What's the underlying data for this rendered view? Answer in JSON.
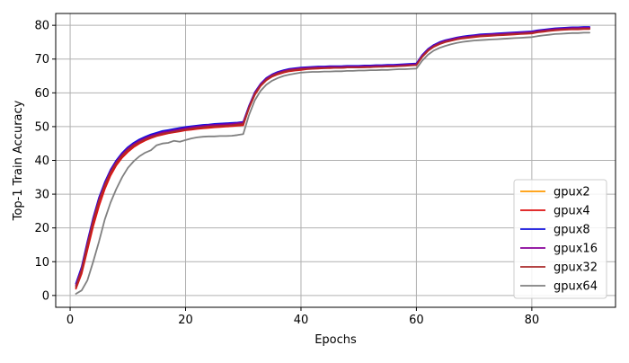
{
  "chart_data": {
    "type": "line",
    "title": "",
    "xlabel": "Epochs",
    "ylabel": "Top-1 Train Accuracy",
    "xlim": [
      -2.5,
      94.5
    ],
    "ylim": [
      -3.5,
      83.5
    ],
    "x_ticks": [
      0,
      20,
      40,
      60,
      80
    ],
    "y_ticks": [
      0,
      10,
      20,
      30,
      40,
      50,
      60,
      70,
      80
    ],
    "grid": true,
    "legend_position": "lower-right",
    "series": [
      {
        "name": "gpux2",
        "color": "#ff9900",
        "x": [
          1,
          2,
          3,
          4,
          5,
          6,
          7,
          8,
          9,
          10,
          11,
          12,
          13,
          14,
          15,
          16,
          17,
          18,
          19,
          20,
          21,
          22,
          23,
          24,
          25,
          26,
          27,
          28,
          29,
          30,
          31,
          32,
          33,
          34,
          35,
          36,
          37,
          38,
          39,
          40,
          41,
          42,
          43,
          44,
          45,
          46,
          47,
          48,
          49,
          50,
          51,
          52,
          53,
          54,
          55,
          56,
          57,
          58,
          59,
          60,
          61,
          62,
          63,
          64,
          65,
          66,
          67,
          68,
          69,
          70,
          71,
          72,
          73,
          74,
          75,
          76,
          77,
          78,
          79,
          80,
          81,
          82,
          83,
          84,
          85,
          86,
          87,
          88,
          89,
          90
        ],
        "y": [
          2.5,
          7.5,
          15,
          22.5,
          28.5,
          33,
          36.8,
          39.6,
          41.8,
          43.5,
          44.8,
          45.8,
          46.6,
          47.3,
          47.8,
          48.3,
          48.6,
          48.9,
          49.2,
          49.5,
          49.8,
          50,
          50.2,
          50.4,
          50.5,
          50.6,
          50.7,
          50.8,
          51,
          51.2,
          56,
          60,
          62.5,
          64.2,
          65.3,
          66,
          66.5,
          66.9,
          67.1,
          67.3,
          67.4,
          67.5,
          67.6,
          67.6,
          67.7,
          67.7,
          67.7,
          67.8,
          67.8,
          67.8,
          67.9,
          67.9,
          68,
          68,
          68.1,
          68.1,
          68.2,
          68.3,
          68.4,
          68.5,
          71,
          72.8,
          74,
          74.8,
          75.4,
          75.8,
          76.2,
          76.5,
          76.7,
          76.9,
          77.1,
          77.2,
          77.3,
          77.4,
          77.5,
          77.6,
          77.7,
          77.8,
          77.9,
          78,
          78.3,
          78.5,
          78.7,
          78.9,
          79,
          79.1,
          79.2,
          79.2,
          79.3,
          79.3
        ]
      },
      {
        "name": "gpux4",
        "color": "#dd1111",
        "x": [
          1,
          2,
          3,
          4,
          5,
          6,
          7,
          8,
          9,
          10,
          11,
          12,
          13,
          14,
          15,
          16,
          17,
          18,
          19,
          20,
          21,
          22,
          23,
          24,
          25,
          26,
          27,
          28,
          29,
          30,
          31,
          32,
          33,
          34,
          35,
          36,
          37,
          38,
          39,
          40,
          41,
          42,
          43,
          44,
          45,
          46,
          47,
          48,
          49,
          50,
          51,
          52,
          53,
          54,
          55,
          56,
          57,
          58,
          59,
          60,
          61,
          62,
          63,
          64,
          65,
          66,
          67,
          68,
          69,
          70,
          71,
          72,
          73,
          74,
          75,
          76,
          77,
          78,
          79,
          80,
          81,
          82,
          83,
          84,
          85,
          86,
          87,
          88,
          89,
          90
        ],
        "y": [
          2,
          6.5,
          13.5,
          20.5,
          26.5,
          31.5,
          35.5,
          38.5,
          40.8,
          42.5,
          43.9,
          45,
          45.9,
          46.6,
          47.2,
          47.6,
          48,
          48.3,
          48.6,
          48.9,
          49.1,
          49.3,
          49.5,
          49.6,
          49.8,
          49.9,
          50,
          50.1,
          50.3,
          50.4,
          55.5,
          59.4,
          62,
          63.7,
          64.8,
          65.5,
          66,
          66.4,
          66.6,
          66.8,
          67,
          67.1,
          67.2,
          67.3,
          67.3,
          67.4,
          67.4,
          67.5,
          67.5,
          67.6,
          67.6,
          67.7,
          67.7,
          67.8,
          67.8,
          67.9,
          68,
          68.1,
          68.2,
          68.2,
          70.6,
          72.4,
          73.6,
          74.4,
          75,
          75.4,
          75.8,
          76.1,
          76.3,
          76.5,
          76.7,
          76.8,
          76.9,
          77,
          77.1,
          77.2,
          77.3,
          77.4,
          77.5,
          77.6,
          77.9,
          78.1,
          78.3,
          78.5,
          78.6,
          78.7,
          78.8,
          78.8,
          78.9,
          78.9
        ]
      },
      {
        "name": "gpux8",
        "color": "#1111dd",
        "x": [
          1,
          2,
          3,
          4,
          5,
          6,
          7,
          8,
          9,
          10,
          11,
          12,
          13,
          14,
          15,
          16,
          17,
          18,
          19,
          20,
          21,
          22,
          23,
          24,
          25,
          26,
          27,
          28,
          29,
          30,
          31,
          32,
          33,
          34,
          35,
          36,
          37,
          38,
          39,
          40,
          41,
          42,
          43,
          44,
          45,
          46,
          47,
          48,
          49,
          50,
          51,
          52,
          53,
          54,
          55,
          56,
          57,
          58,
          59,
          60,
          61,
          62,
          63,
          64,
          65,
          66,
          67,
          68,
          69,
          70,
          71,
          72,
          73,
          74,
          75,
          76,
          77,
          78,
          79,
          80,
          81,
          82,
          83,
          84,
          85,
          86,
          87,
          88,
          89,
          90
        ],
        "y": [
          3.5,
          8.5,
          16,
          23,
          29,
          33.5,
          37.2,
          40,
          42.2,
          43.9,
          45.2,
          46.2,
          47,
          47.7,
          48.2,
          48.7,
          49,
          49.3,
          49.6,
          49.9,
          50.1,
          50.3,
          50.5,
          50.6,
          50.8,
          50.9,
          51,
          51.1,
          51.2,
          51.4,
          56.2,
          60.2,
          62.7,
          64.4,
          65.5,
          66.2,
          66.7,
          67.1,
          67.3,
          67.5,
          67.6,
          67.7,
          67.8,
          67.8,
          67.9,
          67.9,
          67.9,
          68,
          68,
          68,
          68.1,
          68.1,
          68.2,
          68.2,
          68.3,
          68.3,
          68.4,
          68.5,
          68.6,
          68.7,
          71.2,
          73,
          74.2,
          75,
          75.6,
          76,
          76.4,
          76.7,
          76.9,
          77.1,
          77.3,
          77.4,
          77.5,
          77.6,
          77.7,
          77.8,
          77.9,
          78,
          78.1,
          78.2,
          78.5,
          78.7,
          78.9,
          79.1,
          79.2,
          79.3,
          79.4,
          79.4,
          79.5,
          79.5
        ]
      },
      {
        "name": "gpux16",
        "color": "#880099",
        "x": [
          1,
          2,
          3,
          4,
          5,
          6,
          7,
          8,
          9,
          10,
          11,
          12,
          13,
          14,
          15,
          16,
          17,
          18,
          19,
          20,
          21,
          22,
          23,
          24,
          25,
          26,
          27,
          28,
          29,
          30,
          31,
          32,
          33,
          34,
          35,
          36,
          37,
          38,
          39,
          40,
          41,
          42,
          43,
          44,
          45,
          46,
          47,
          48,
          49,
          50,
          51,
          52,
          53,
          54,
          55,
          56,
          57,
          58,
          59,
          60,
          61,
          62,
          63,
          64,
          65,
          66,
          67,
          68,
          69,
          70,
          71,
          72,
          73,
          74,
          75,
          76,
          77,
          78,
          79,
          80,
          81,
          82,
          83,
          84,
          85,
          86,
          87,
          88,
          89,
          90
        ],
        "y": [
          3,
          8,
          15.5,
          22.5,
          28.5,
          33,
          36.8,
          39.6,
          41.8,
          43.5,
          44.8,
          45.8,
          46.6,
          47.3,
          47.8,
          48.3,
          48.6,
          48.9,
          49.2,
          49.5,
          49.8,
          50,
          50.2,
          50.4,
          50.5,
          50.6,
          50.7,
          50.8,
          51,
          51.2,
          56,
          60,
          62.5,
          64.2,
          65.3,
          66,
          66.5,
          66.9,
          67.1,
          67.3,
          67.4,
          67.5,
          67.6,
          67.6,
          67.7,
          67.7,
          67.7,
          67.8,
          67.8,
          67.8,
          67.9,
          67.9,
          68,
          68,
          68.1,
          68.1,
          68.2,
          68.3,
          68.4,
          68.5,
          71,
          72.8,
          74,
          74.8,
          75.4,
          75.8,
          76.2,
          76.5,
          76.7,
          76.9,
          77.1,
          77.2,
          77.3,
          77.4,
          77.5,
          77.6,
          77.7,
          77.8,
          77.9,
          78,
          78.3,
          78.5,
          78.7,
          78.9,
          79,
          79.1,
          79.2,
          79.2,
          79.3,
          79.3
        ]
      },
      {
        "name": "gpux32",
        "color": "#aa2a2a",
        "x": [
          1,
          2,
          3,
          4,
          5,
          6,
          7,
          8,
          9,
          10,
          11,
          12,
          13,
          14,
          15,
          16,
          17,
          18,
          19,
          20,
          21,
          22,
          23,
          24,
          25,
          26,
          27,
          28,
          29,
          30,
          31,
          32,
          33,
          34,
          35,
          36,
          37,
          38,
          39,
          40,
          41,
          42,
          43,
          44,
          45,
          46,
          47,
          48,
          49,
          50,
          51,
          52,
          53,
          54,
          55,
          56,
          57,
          58,
          59,
          60,
          61,
          62,
          63,
          64,
          65,
          66,
          67,
          68,
          69,
          70,
          71,
          72,
          73,
          74,
          75,
          76,
          77,
          78,
          79,
          80,
          81,
          82,
          83,
          84,
          85,
          86,
          87,
          88,
          89,
          90
        ],
        "y": [
          2.5,
          7.5,
          14.8,
          22,
          28,
          32.6,
          36.4,
          39.2,
          41.4,
          43.1,
          44.4,
          45.4,
          46.2,
          46.9,
          47.4,
          47.9,
          48.2,
          48.5,
          48.8,
          49.1,
          49.4,
          49.6,
          49.8,
          50,
          50.1,
          50.2,
          50.3,
          50.4,
          50.6,
          50.8,
          55.7,
          59.7,
          62.2,
          63.9,
          65,
          65.7,
          66.2,
          66.6,
          66.8,
          67,
          67.1,
          67.2,
          67.3,
          67.3,
          67.4,
          67.4,
          67.4,
          67.5,
          67.5,
          67.5,
          67.6,
          67.6,
          67.7,
          67.7,
          67.8,
          67.8,
          67.9,
          68,
          68.1,
          68.2,
          70.7,
          72.5,
          73.7,
          74.5,
          75.1,
          75.5,
          75.9,
          76.2,
          76.4,
          76.6,
          76.8,
          76.9,
          77,
          77.1,
          77.2,
          77.3,
          77.4,
          77.5,
          77.6,
          77.7,
          78,
          78.2,
          78.4,
          78.6,
          78.7,
          78.8,
          78.9,
          78.9,
          79,
          79
        ]
      },
      {
        "name": "gpux64",
        "color": "#808080",
        "x": [
          1,
          2,
          3,
          4,
          5,
          6,
          7,
          8,
          9,
          10,
          11,
          12,
          13,
          14,
          15,
          16,
          17,
          18,
          19,
          20,
          21,
          22,
          23,
          24,
          25,
          26,
          27,
          28,
          29,
          30,
          31,
          32,
          33,
          34,
          35,
          36,
          37,
          38,
          39,
          40,
          41,
          42,
          43,
          44,
          45,
          46,
          47,
          48,
          49,
          50,
          51,
          52,
          53,
          54,
          55,
          56,
          57,
          58,
          59,
          60,
          61,
          62,
          63,
          64,
          65,
          66,
          67,
          68,
          69,
          70,
          71,
          72,
          73,
          74,
          75,
          76,
          77,
          78,
          79,
          80,
          81,
          82,
          83,
          84,
          85,
          86,
          87,
          88,
          89,
          90
        ],
        "y": [
          0.5,
          1.5,
          4.5,
          10,
          16,
          22.5,
          27.5,
          31.5,
          35,
          37.8,
          39.7,
          41.2,
          42.3,
          43,
          44.5,
          45,
          45.2,
          45.8,
          45.5,
          46,
          46.5,
          46.8,
          47,
          47.1,
          47.1,
          47.2,
          47.2,
          47.3,
          47.5,
          47.8,
          53.5,
          57.8,
          60.6,
          62.4,
          63.6,
          64.4,
          65,
          65.4,
          65.7,
          66,
          66.1,
          66.2,
          66.2,
          66.3,
          66.3,
          66.4,
          66.4,
          66.5,
          66.5,
          66.6,
          66.6,
          66.7,
          66.7,
          66.8,
          66.8,
          66.9,
          67,
          67,
          67.1,
          67.2,
          69.5,
          71.3,
          72.5,
          73.3,
          73.9,
          74.4,
          74.8,
          75.1,
          75.3,
          75.5,
          75.6,
          75.7,
          75.8,
          75.9,
          76,
          76.1,
          76.2,
          76.3,
          76.4,
          76.5,
          76.8,
          77,
          77.2,
          77.4,
          77.5,
          77.6,
          77.7,
          77.7,
          77.8,
          77.8
        ]
      }
    ]
  }
}
